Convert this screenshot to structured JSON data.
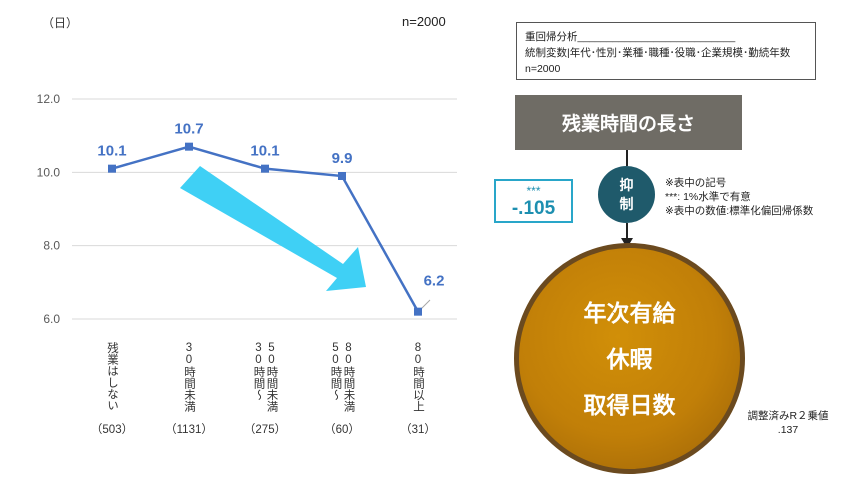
{
  "chart_data": {
    "type": "line",
    "unit_label": "（日）",
    "n_label": "n=2000",
    "categories": [
      {
        "label": "残業はしない",
        "count": "（503）"
      },
      {
        "label": "30時間未満",
        "count": "（1131）"
      },
      {
        "label": "50時間未満 30時間～",
        "count": "（275）"
      },
      {
        "label": "80時間未満 50時間～",
        "count": "（60）"
      },
      {
        "label": "80時間以上",
        "count": "（31）"
      }
    ],
    "values": [
      10.1,
      10.7,
      10.1,
      9.9,
      6.2
    ],
    "value_labels": [
      "10.1",
      "10.7",
      "10.1",
      "9.9",
      "6.2"
    ],
    "y_ticks": [
      "12.0",
      "10.0",
      "8.0",
      "6.0"
    ],
    "ylim": [
      6.0,
      12.0
    ],
    "grid": true,
    "colors": {
      "line": "#4472c4",
      "label": "#4472c4",
      "arrow": "#3fd0f5"
    }
  },
  "diagram": {
    "regression_box": {
      "line1": "重回帰分析___________________________",
      "line2": "統制変数|年代･性別･業種･職種･役職･企業規模･勤続年数",
      "line3": "n=2000"
    },
    "title": "残業時間の長さ",
    "coefficient": {
      "sig": "***",
      "value": "-.105"
    },
    "suppress": [
      "抑",
      "制"
    ],
    "notes": [
      "※表中の記号",
      "***:  1%水準で有意",
      "※表中の数値:標準化偏回帰係数"
    ],
    "outcome": [
      "年次有給",
      "休暇",
      "取得日数"
    ],
    "r2": [
      "調整済みR２乗値",
      ".137"
    ],
    "colors": {
      "title_bg": "#6f6c65",
      "circle": "#c17f08",
      "suppress_bg": "#1f5a6b",
      "coef_border": "#29a6c9"
    }
  }
}
